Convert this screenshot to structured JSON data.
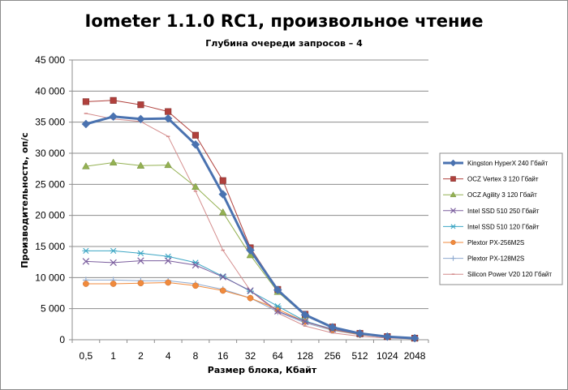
{
  "chart_data": {
    "type": "line",
    "title": "Iometer 1.1.0 RC1, произвольное чтение",
    "subtitle": "Глубина очереди запросов – 4",
    "xlabel": "Размер блока, Кбайт",
    "ylabel": "Производительность, оп/с",
    "categories": [
      "0,5",
      "1",
      "2",
      "4",
      "8",
      "16",
      "32",
      "64",
      "128",
      "256",
      "512",
      "1024",
      "2048"
    ],
    "ylim": [
      0,
      45000
    ],
    "yticks": [
      0,
      5000,
      10000,
      15000,
      20000,
      25000,
      30000,
      35000,
      40000,
      45000
    ],
    "ytick_labels": [
      "0",
      "5 000",
      "10 000",
      "15 000",
      "20 000",
      "25 000",
      "30 000",
      "35 000",
      "40 000",
      "45 000"
    ],
    "grid": "horizontal",
    "legend_position": "right",
    "series": [
      {
        "name": "Kingston HyperX  240 Гбайт",
        "color": "#4a72b0",
        "marker": "diamond",
        "values": [
          34700,
          35900,
          35500,
          35600,
          31400,
          23400,
          14400,
          8000,
          4000,
          2000,
          1000,
          500,
          250
        ]
      },
      {
        "name": "OCZ Vertex  3 120 Гбайт",
        "color": "#b0403c",
        "marker": "square",
        "values": [
          38300,
          38500,
          37800,
          36700,
          32900,
          25600,
          14800,
          8100,
          4100,
          2050,
          1020,
          510,
          255
        ]
      },
      {
        "name": "OCZ Agility  3 120 Гбайт",
        "color": "#94b152",
        "marker": "triangle",
        "values": [
          27900,
          28500,
          28000,
          28100,
          24600,
          20500,
          13600,
          7700,
          3900,
          1950,
          980,
          490,
          245
        ]
      },
      {
        "name": "Intel  SSD 510 250 Гбайт",
        "color": "#7b5e9e",
        "marker": "x",
        "values": [
          12600,
          12400,
          12700,
          12700,
          12000,
          10100,
          7900,
          4600,
          2900,
          1700,
          900,
          450,
          230
        ]
      },
      {
        "name": "Intel  SSD 510 120 Гбайт",
        "color": "#3da6c4",
        "marker": "star",
        "values": [
          14300,
          14300,
          13900,
          13400,
          12400,
          10200,
          7800,
          5400,
          3000,
          1700,
          900,
          450,
          230
        ]
      },
      {
        "name": "Plextor PX-256M2S",
        "color": "#f08a3c",
        "marker": "circle",
        "values": [
          9000,
          9000,
          9100,
          9200,
          8700,
          7900,
          6700,
          4900,
          2900,
          1600,
          820,
          410,
          205
        ]
      },
      {
        "name": "Plextor PX-128M2S",
        "color": "#8eaad0",
        "marker": "plus",
        "values": [
          9600,
          9600,
          9500,
          9500,
          9000,
          8100,
          6700,
          4500,
          2700,
          1500,
          800,
          400,
          200
        ]
      },
      {
        "name": "Silicon Power  V20 120 Гбайт",
        "color": "#d48c8c",
        "marker": "dash",
        "values": [
          36400,
          35500,
          35100,
          32700,
          23900,
          14400,
          7900,
          4300,
          2200,
          1100,
          560,
          280,
          140
        ]
      }
    ]
  }
}
